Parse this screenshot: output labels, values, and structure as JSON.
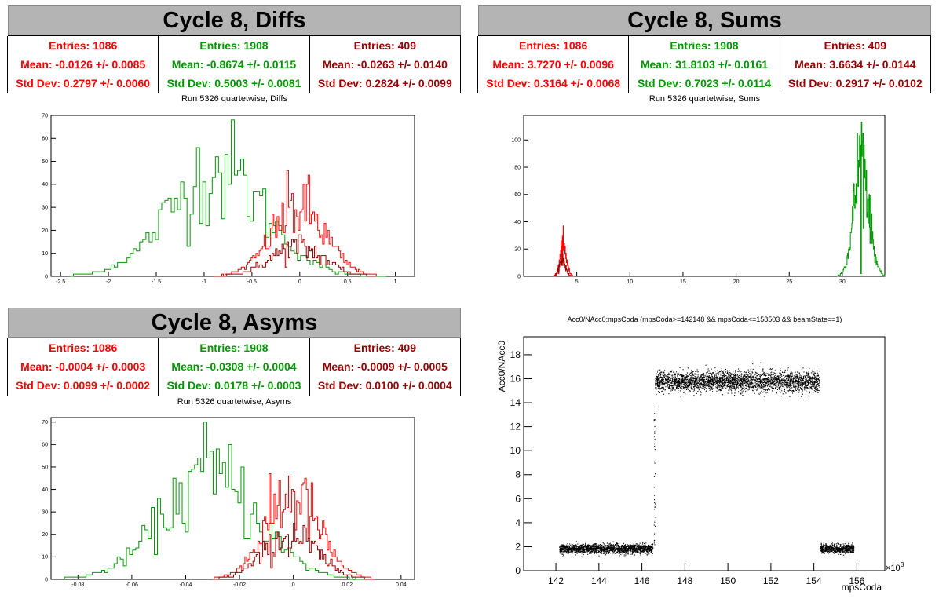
{
  "panels": [
    {
      "id": "diffs",
      "header": "Cycle 8, Diffs",
      "stats": [
        {
          "color": "#ff0000",
          "entries": "Entries: 1086",
          "mean": "Mean: -0.0126 +/- 0.0085",
          "std": "Std Dev: 0.2797 +/- 0.0060"
        },
        {
          "color": "#009900",
          "entries": "Entries: 1908",
          "mean": "Mean: -0.8674 +/- 0.0115",
          "std": "Std Dev: 0.5003 +/- 0.0081"
        },
        {
          "color": "#990000",
          "entries": "Entries: 409",
          "mean": "Mean: -0.0263 +/- 0.0140",
          "std": "Std Dev: 0.2824 +/- 0.0099"
        }
      ],
      "subtitle": "Run 5326 quartetwise, Diffs"
    },
    {
      "id": "sums",
      "header": "Cycle 8, Sums",
      "stats": [
        {
          "color": "#ff0000",
          "entries": "Entries: 1086",
          "mean": "Mean: 3.7270 +/- 0.0096",
          "std": "Std Dev: 0.3164 +/- 0.0068"
        },
        {
          "color": "#009900",
          "entries": "Entries: 1908",
          "mean": "Mean: 31.8103 +/- 0.0161",
          "std": "Std Dev: 0.7023 +/- 0.0114"
        },
        {
          "color": "#990000",
          "entries": "Entries: 409",
          "mean": "Mean: 3.6634 +/- 0.0144",
          "std": "Std Dev: 0.2917 +/- 0.0102"
        }
      ],
      "subtitle": "Run 5326 quartetwise, Sums"
    },
    {
      "id": "asyms",
      "header": "Cycle 8, Asyms",
      "stats": [
        {
          "color": "#ff0000",
          "entries": "Entries: 1086",
          "mean": "Mean: -0.0004 +/- 0.0003",
          "std": "Std Dev: 0.0099 +/- 0.0002"
        },
        {
          "color": "#009900",
          "entries": "Entries: 1908",
          "mean": "Mean: -0.0308 +/- 0.0004",
          "std": "Std Dev: 0.0178 +/- 0.0003"
        },
        {
          "color": "#990000",
          "entries": "Entries: 409",
          "mean": "Mean: -0.0009 +/- 0.0005",
          "std": "Std Dev: 0.0100 +/- 0.0004"
        }
      ],
      "subtitle": "Run 5326 quartetwise, Asyms"
    }
  ],
  "scatter_title": "Acc0/NAcc0:mpsCoda (mpsCoda>=142148 && mpsCoda<=158503 && beamState==1)",
  "scatter_exp": "×10",
  "scatter_exp_sup": "3",
  "chart_data": [
    {
      "type": "histogram",
      "name": "diffs",
      "xlim": [
        -2.6,
        1.2
      ],
      "ylim": [
        0,
        70
      ],
      "xticks": [
        -2.5,
        -2,
        -1.5,
        -1,
        -0.5,
        0,
        0.5,
        1
      ],
      "xtick_labels": [
        "-2.5",
        "-2",
        "-1.5",
        "-1",
        "-0.5",
        "0",
        "0.5",
        "1"
      ],
      "yticks": [
        0,
        10,
        20,
        30,
        40,
        50,
        60,
        70
      ],
      "ytick_labels": [
        "0",
        "10",
        "20",
        "30",
        "40",
        "50",
        "60",
        "70"
      ],
      "series": [
        {
          "color": "#009900",
          "mean": -0.8674,
          "std": 0.5003,
          "peak": 68,
          "range": [
            -2.4,
            0.9
          ]
        },
        {
          "color": "#ff0000",
          "mean": -0.0126,
          "std": 0.2797,
          "peak": 46,
          "range": [
            -0.9,
            0.8
          ]
        },
        {
          "color": "#990000",
          "mean": -0.0263,
          "std": 0.2824,
          "peak": 18,
          "range": [
            -0.9,
            0.8
          ]
        }
      ]
    },
    {
      "type": "histogram",
      "name": "sums",
      "xlim": [
        0,
        34
      ],
      "ylim": [
        0,
        118
      ],
      "xticks": [
        5,
        10,
        15,
        20,
        25,
        30
      ],
      "xtick_labels": [
        "5",
        "10",
        "15",
        "20",
        "25",
        "30"
      ],
      "yticks": [
        0,
        20,
        40,
        60,
        80,
        100
      ],
      "ytick_labels": [
        "0",
        "20",
        "40",
        "60",
        "80",
        "100"
      ],
      "series": [
        {
          "color": "#009900",
          "mean": 31.8103,
          "std": 0.7023,
          "peak": 113,
          "range": [
            29.5,
            34
          ]
        },
        {
          "color": "#ff0000",
          "mean": 3.727,
          "std": 0.3164,
          "peak": 37,
          "range": [
            2.8,
            4.8
          ]
        },
        {
          "color": "#990000",
          "mean": 3.6634,
          "std": 0.2917,
          "peak": 16,
          "range": [
            2.8,
            4.8
          ]
        }
      ]
    },
    {
      "type": "histogram",
      "name": "asyms",
      "xlim": [
        -0.09,
        0.045
      ],
      "ylim": [
        0,
        72
      ],
      "xticks": [
        -0.08,
        -0.06,
        -0.04,
        -0.02,
        0,
        0.02,
        0.04
      ],
      "xtick_labels": [
        "-0.08",
        "-0.06",
        "-0.04",
        "-0.02",
        "0",
        "0.02",
        "0.04"
      ],
      "yticks": [
        0,
        10,
        20,
        30,
        40,
        50,
        60,
        70
      ],
      "ytick_labels": [
        "0",
        "10",
        "20",
        "30",
        "40",
        "50",
        "60",
        "70"
      ],
      "series": [
        {
          "color": "#009900",
          "mean": -0.0308,
          "std": 0.0178,
          "peak": 70,
          "range": [
            -0.085,
            0.03
          ]
        },
        {
          "color": "#ff0000",
          "mean": -0.0004,
          "std": 0.0099,
          "peak": 47,
          "range": [
            -0.03,
            0.03
          ]
        },
        {
          "color": "#990000",
          "mean": -0.0009,
          "std": 0.01,
          "peak": 25,
          "range": [
            -0.03,
            0.03
          ]
        }
      ]
    },
    {
      "type": "scatter",
      "name": "acc0",
      "xlabel": "mpsCoda",
      "ylabel": "Acc0/NAcc0",
      "xlim": [
        140.5,
        157.3
      ],
      "ylim": [
        0,
        19.5
      ],
      "xticks": [
        142,
        144,
        146,
        148,
        150,
        152,
        154,
        156
      ],
      "xtick_labels": [
        "142",
        "144",
        "146",
        "148",
        "150",
        "152",
        "154",
        "156"
      ],
      "yticks": [
        0,
        2,
        4,
        6,
        8,
        10,
        12,
        14,
        16,
        18
      ],
      "ytick_labels": [
        "0",
        "2",
        "4",
        "6",
        "8",
        "10",
        "12",
        "14",
        "16",
        "18"
      ],
      "clusters": [
        {
          "x": [
            142.15,
            146.5
          ],
          "y": 1.85,
          "spread": 0.35
        },
        {
          "x": [
            146.6,
            154.25
          ],
          "y": 15.8,
          "spread": 0.75
        },
        {
          "x": [
            154.3,
            155.85
          ],
          "y": 1.85,
          "spread": 0.35
        }
      ]
    }
  ]
}
